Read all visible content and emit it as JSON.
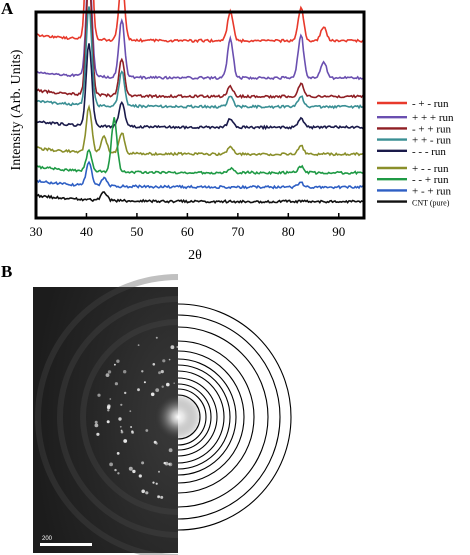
{
  "panels": {
    "a_label": "A",
    "b_label": "B"
  },
  "chart_data": {
    "type": "line",
    "ylabel": "Intensity (Arb. Units)",
    "xlabel": "2θ",
    "xlim": [
      30,
      95
    ],
    "xticks": [
      30,
      40,
      50,
      60,
      70,
      80,
      90
    ],
    "yticks_shown": false,
    "grid": false,
    "legend_position": "right",
    "series": [
      {
        "name": "- + -  run",
        "color": "#e8392b",
        "baseline": 0.86,
        "offset": 1,
        "peaks": [
          [
            40.5,
            0.82
          ],
          [
            47.0,
            0.3
          ],
          [
            68.5,
            0.14
          ],
          [
            82.5,
            0.16
          ],
          [
            87.0,
            0.07
          ]
        ]
      },
      {
        "name": "+ + + run",
        "color": "#6a4fb0",
        "baseline": 0.68,
        "offset": 2,
        "peaks": [
          [
            40.5,
            0.55
          ],
          [
            47.0,
            0.28
          ],
          [
            68.5,
            0.19
          ],
          [
            82.5,
            0.21
          ],
          [
            87.0,
            0.08
          ]
        ]
      },
      {
        "name": "- + + run",
        "color": "#8f1f24",
        "baseline": 0.59,
        "offset": 3,
        "peaks": [
          [
            40.5,
            0.58
          ],
          [
            47.0,
            0.18
          ],
          [
            68.5,
            0.05
          ],
          [
            82.5,
            0.06
          ]
        ]
      },
      {
        "name": "+ + -  run",
        "color": "#3a8f94",
        "baseline": 0.54,
        "offset": 4,
        "peaks": [
          [
            40.5,
            0.48
          ],
          [
            47.0,
            0.17
          ],
          [
            68.5,
            0.05
          ],
          [
            82.5,
            0.05
          ]
        ]
      },
      {
        "name": "- - -   run",
        "color": "#1a1a4a",
        "baseline": 0.44,
        "offset": 5,
        "peaks": [
          [
            40.5,
            0.4
          ],
          [
            47.0,
            0.12
          ],
          [
            68.5,
            0.04
          ],
          [
            82.5,
            0.04
          ]
        ]
      },
      {
        "name": "+ - -  run",
        "color": "#8a8f2a",
        "baseline": 0.31,
        "offset": 6,
        "peaks": [
          [
            40.5,
            0.22
          ],
          [
            43.5,
            0.08
          ],
          [
            47.0,
            0.1
          ],
          [
            68.5,
            0.04
          ],
          [
            82.5,
            0.04
          ]
        ]
      },
      {
        "name": "- - +  run",
        "color": "#1f9a45",
        "baseline": 0.22,
        "offset": 7,
        "peaks": [
          [
            40.5,
            0.1
          ],
          [
            45.5,
            0.26
          ],
          [
            68.5,
            0.02
          ],
          [
            82.5,
            0.03
          ]
        ]
      },
      {
        "name": "+ - + run",
        "color": "#2e5fc4",
        "baseline": 0.15,
        "offset": 8,
        "peaks": [
          [
            40.5,
            0.11
          ],
          [
            43.5,
            0.04
          ],
          [
            82.5,
            0.02
          ]
        ]
      },
      {
        "name": "CNT (pure)",
        "color": "#111111",
        "baseline": 0.08,
        "offset": 9,
        "peaks": [
          [
            43.5,
            0.04
          ]
        ]
      }
    ]
  },
  "saed": {
    "scale_label": "200"
  }
}
